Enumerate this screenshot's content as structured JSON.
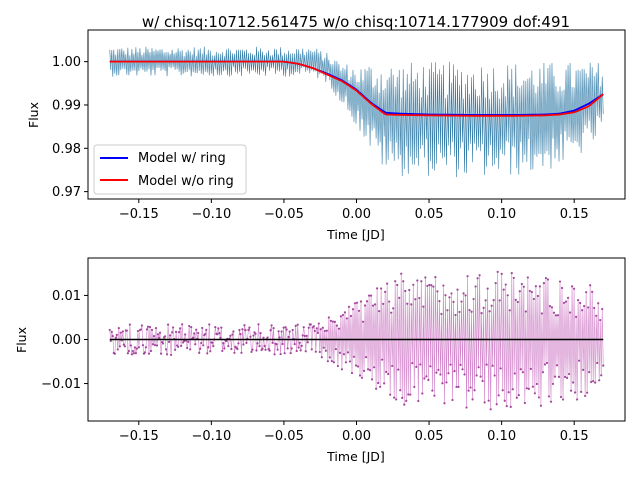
{
  "chart_data": [
    {
      "type": "line",
      "title": "w/ chisq:10712.561475 w/o chisq:10714.177909 dof:491",
      "xlabel": "Time [JD]",
      "ylabel": "Flux",
      "xlim": [
        -0.185,
        0.185
      ],
      "ylim": [
        0.9683,
        1.0073
      ],
      "xticks": [
        -0.15,
        -0.1,
        -0.05,
        0.0,
        0.05,
        0.1,
        0.15
      ],
      "xtick_labels": [
        "−0.15",
        "−0.10",
        "−0.05",
        "0.00",
        "0.05",
        "0.10",
        "0.15"
      ],
      "yticks": [
        0.97,
        0.98,
        0.99,
        1.0
      ],
      "ytick_labels": [
        "0.97",
        "0.98",
        "0.99",
        "1.00"
      ],
      "legend": {
        "placement": "lower-left",
        "entries": [
          "Model w/ ring",
          "Model w/o ring"
        ]
      },
      "colors": {
        "data": "#1f6f9f",
        "with_ring": "#0000ff",
        "without_ring": "#ff0000"
      },
      "series": [
        {
          "name": "Model w/ ring",
          "x": [
            -0.17,
            -0.05,
            -0.04,
            -0.03,
            -0.02,
            -0.01,
            0.0,
            0.01,
            0.02,
            0.03,
            0.05,
            0.08,
            0.11,
            0.13,
            0.14,
            0.15,
            0.16,
            0.17
          ],
          "y": [
            1.0,
            1.0,
            0.9995,
            0.9985,
            0.9972,
            0.9957,
            0.9935,
            0.9905,
            0.9882,
            0.988,
            0.9878,
            0.9877,
            0.9877,
            0.9878,
            0.988,
            0.9887,
            0.9903,
            0.9925
          ]
        },
        {
          "name": "Model w/o ring",
          "x": [
            -0.17,
            -0.05,
            -0.04,
            -0.03,
            -0.02,
            -0.01,
            0.0,
            0.01,
            0.02,
            0.03,
            0.05,
            0.08,
            0.11,
            0.13,
            0.14,
            0.15,
            0.16,
            0.17
          ],
          "y": [
            1.0,
            1.0,
            0.9995,
            0.9985,
            0.997,
            0.9955,
            0.9933,
            0.9903,
            0.9878,
            0.9877,
            0.9876,
            0.9875,
            0.9875,
            0.9876,
            0.9878,
            0.9883,
            0.9897,
            0.9925
          ]
        }
      ],
      "observed_envelope": {
        "x": [
          -0.17,
          -0.03,
          -0.02,
          -0.01,
          0.0,
          0.01,
          0.02,
          0.03,
          0.05,
          0.08,
          0.11,
          0.13,
          0.15,
          0.17
        ],
        "upper": [
          1.0035,
          1.0035,
          1.002,
          1.0,
          0.999,
          1.0,
          1.0,
          1.0,
          1.0,
          1.0,
          1.0,
          1.0,
          1.0,
          1.0
        ],
        "lower": [
          0.9965,
          0.9965,
          0.995,
          0.99,
          0.985,
          0.979,
          0.9745,
          0.9735,
          0.9735,
          0.973,
          0.9735,
          0.9745,
          0.977,
          0.983
        ]
      }
    },
    {
      "type": "line",
      "xlabel": "Time [JD]",
      "ylabel": "Flux",
      "xlim": [
        -0.185,
        0.185
      ],
      "ylim": [
        -0.0185,
        0.0185
      ],
      "xticks": [
        -0.15,
        -0.1,
        -0.05,
        0.0,
        0.05,
        0.1,
        0.15
      ],
      "xtick_labels": [
        "−0.15",
        "−0.10",
        "−0.05",
        "0.00",
        "0.05",
        "0.10",
        "0.15"
      ],
      "yticks": [
        -0.01,
        0.0,
        0.01
      ],
      "ytick_labels": [
        "−0.01",
        "0.00",
        "0.01"
      ],
      "colors": {
        "residuals": "#c15cb8",
        "zero_line": "#000000"
      },
      "zero_line_y": 0.0,
      "residual_envelope": {
        "x": [
          -0.17,
          -0.03,
          -0.02,
          -0.01,
          0.0,
          0.01,
          0.02,
          0.03,
          0.05,
          0.08,
          0.11,
          0.13,
          0.15,
          0.17
        ],
        "amplitude": [
          0.0035,
          0.0035,
          0.005,
          0.007,
          0.009,
          0.011,
          0.013,
          0.015,
          0.015,
          0.016,
          0.016,
          0.015,
          0.014,
          0.011
        ]
      }
    }
  ]
}
